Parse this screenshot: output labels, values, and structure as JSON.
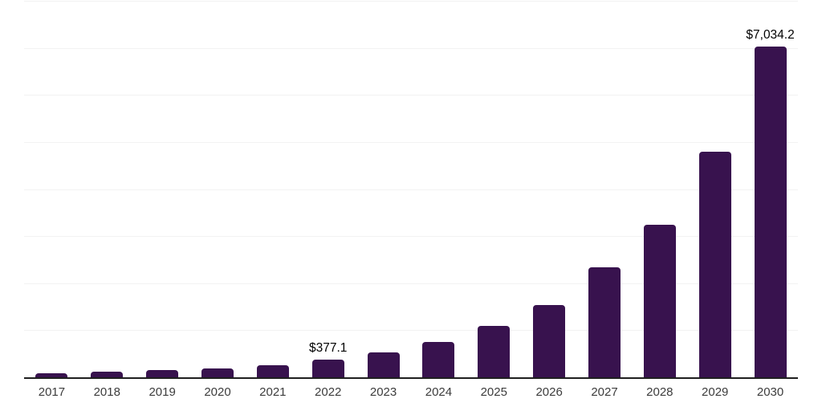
{
  "colors": {
    "bar": "#38124E",
    "gridline": "#F2F2F2",
    "axis_line": "#1F1F1F",
    "tick_label": "#3C3C3C",
    "data_label": "#000000",
    "background": "#FFFFFF"
  },
  "chart_data": {
    "type": "bar",
    "title": "",
    "xlabel": "",
    "ylabel": "",
    "categories": [
      "2017",
      "2018",
      "2019",
      "2020",
      "2021",
      "2022",
      "2023",
      "2024",
      "2025",
      "2026",
      "2027",
      "2028",
      "2029",
      "2030"
    ],
    "values": [
      80,
      120,
      150,
      190,
      255,
      377.1,
      530,
      755,
      1095,
      1535,
      2330,
      3240,
      4795,
      7034.2
    ],
    "labeled_values": {
      "2022": 377.1,
      "2030": 7034.2
    },
    "annotations": [
      {
        "category": "2022",
        "text": "$377.1"
      },
      {
        "category": "2030",
        "text": "$7,034.2"
      }
    ],
    "ylim": [
      0,
      8000
    ],
    "gridline_step": 1000,
    "grid": true,
    "legend": "none",
    "y_axis_labels_visible": false,
    "note": "Only 2022 and 2030 have data labels; other values estimated from bar heights vs gridlines"
  }
}
